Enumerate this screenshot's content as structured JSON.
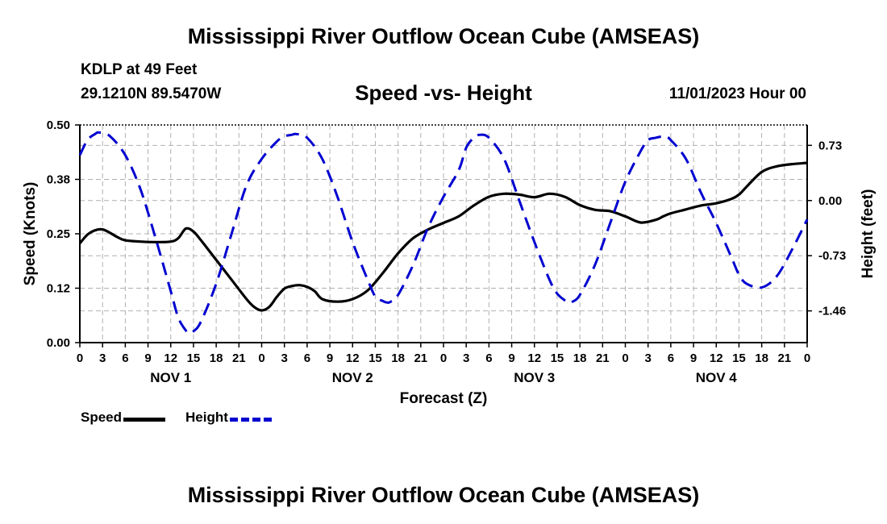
{
  "header": {
    "title": "Mississippi River Outflow Ocean Cube (AMSEAS)",
    "station": "KDLP at 49 Feet",
    "coords": "29.1210N  89.5470W",
    "chart_title": "Speed -vs- Height",
    "timestamp": "11/01/2023 Hour 00"
  },
  "footer": {
    "title": "Mississippi River Outflow Ocean Cube (AMSEAS)"
  },
  "legend": {
    "speed_label": "Speed",
    "height_label": "Height"
  },
  "colors": {
    "speed": "#000000",
    "height": "#0000d0",
    "grid": "#b0b0b0"
  },
  "chart_data": {
    "type": "line",
    "title": "Speed -vs- Height",
    "xlabel": "Forecast (Z)",
    "ylabel": "Speed (Knots)",
    "y2label": "Height (feet)",
    "xlim": [
      0,
      96
    ],
    "ylim": [
      0,
      0.5
    ],
    "y2lim": [
      -1.88,
      1.0
    ],
    "x_ticks": [
      "0",
      "3",
      "6",
      "9",
      "12",
      "15",
      "18",
      "21",
      "0",
      "3",
      "6",
      "9",
      "12",
      "15",
      "18",
      "21",
      "0",
      "3",
      "6",
      "9",
      "12",
      "15",
      "18",
      "21",
      "0",
      "3",
      "6",
      "9",
      "12",
      "15",
      "18",
      "21",
      "0"
    ],
    "day_labels": [
      {
        "label": "NOV 1",
        "center_hour": 12
      },
      {
        "label": "NOV 2",
        "center_hour": 36
      },
      {
        "label": "NOV 3",
        "center_hour": 60
      },
      {
        "label": "NOV 4",
        "center_hour": 84
      }
    ],
    "y_ticks": [
      "0.00",
      "0.12",
      "0.25",
      "0.38",
      "0.50"
    ],
    "y_tick_values": [
      0,
      0.125,
      0.25,
      0.375,
      0.5
    ],
    "y2_ticks": [
      "0.73",
      "0.00",
      "-0.73",
      "-1.46"
    ],
    "y2_tick_values": [
      0.73,
      0.0,
      -0.73,
      -1.46
    ],
    "series": [
      {
        "name": "Speed",
        "axis": "left",
        "style": "solid",
        "x": [
          0,
          1,
          2,
          3,
          4,
          5,
          6,
          8,
          10,
          12,
          13,
          14,
          15,
          16,
          18,
          20,
          22,
          23,
          24,
          25,
          26,
          27,
          28,
          29,
          30,
          31,
          32,
          34,
          36,
          38,
          40,
          42,
          44,
          46,
          48,
          50,
          52,
          54,
          56,
          58,
          60,
          62,
          64,
          66,
          68,
          70,
          72,
          74,
          76,
          77,
          78,
          80,
          82,
          84,
          86,
          87,
          88,
          90,
          92,
          94,
          96
        ],
        "values": [
          0.228,
          0.248,
          0.258,
          0.26,
          0.252,
          0.242,
          0.235,
          0.232,
          0.231,
          0.232,
          0.24,
          0.262,
          0.255,
          0.235,
          0.19,
          0.145,
          0.1,
          0.082,
          0.074,
          0.082,
          0.105,
          0.124,
          0.13,
          0.132,
          0.128,
          0.118,
          0.1,
          0.094,
          0.1,
          0.12,
          0.16,
          0.205,
          0.24,
          0.26,
          0.275,
          0.29,
          0.315,
          0.335,
          0.342,
          0.34,
          0.334,
          0.342,
          0.335,
          0.316,
          0.305,
          0.302,
          0.29,
          0.276,
          0.282,
          0.29,
          0.297,
          0.306,
          0.315,
          0.32,
          0.33,
          0.34,
          0.358,
          0.392,
          0.405,
          0.41,
          0.413
        ]
      },
      {
        "name": "Height",
        "axis": "right",
        "style": "dashed",
        "x": [
          0,
          1,
          2,
          2.6,
          4,
          6,
          8,
          10,
          12,
          13,
          14,
          14.4,
          15,
          16,
          18,
          20,
          22,
          24,
          26,
          27,
          28,
          28.6,
          30,
          32,
          34,
          36,
          38,
          39,
          40,
          40.6,
          41,
          42,
          44,
          46,
          48,
          50,
          51,
          52,
          52.8,
          54,
          56,
          58,
          60,
          62,
          63,
          64,
          64.6,
          65,
          66,
          68,
          70,
          72,
          74,
          75,
          76,
          77.2,
          78,
          80,
          82,
          84,
          86,
          87,
          88,
          90,
          92,
          94,
          96
        ],
        "values": [
          0.6,
          0.8,
          0.88,
          0.9,
          0.85,
          0.6,
          0.15,
          -0.5,
          -1.2,
          -1.55,
          -1.72,
          -1.75,
          -1.73,
          -1.6,
          -1.1,
          -0.45,
          0.2,
          0.55,
          0.78,
          0.85,
          0.87,
          0.88,
          0.83,
          0.55,
          0.05,
          -0.55,
          -1.05,
          -1.27,
          -1.33,
          -1.35,
          -1.34,
          -1.25,
          -0.85,
          -0.35,
          0.05,
          0.4,
          0.7,
          0.83,
          0.87,
          0.83,
          0.55,
          0.0,
          -0.55,
          -1.05,
          -1.23,
          -1.32,
          -1.35,
          -1.34,
          -1.25,
          -0.85,
          -0.3,
          0.25,
          0.65,
          0.8,
          0.83,
          0.85,
          0.8,
          0.55,
          0.1,
          -0.3,
          -0.75,
          -0.98,
          -1.1,
          -1.15,
          -1.0,
          -0.65,
          -0.25
        ]
      }
    ]
  }
}
